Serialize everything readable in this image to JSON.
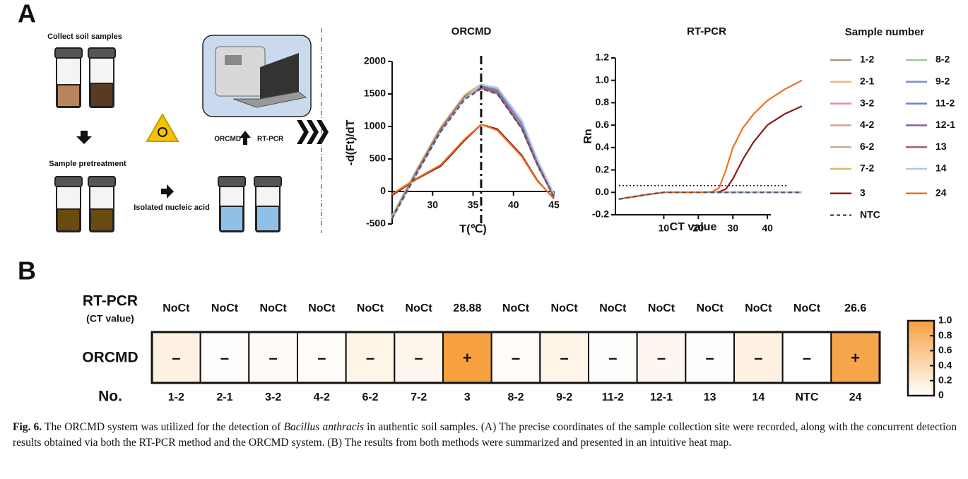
{
  "panel_labels": [
    "A",
    "B"
  ],
  "schematic": {
    "collect": "Collect soil samples",
    "pretreatment": "Sample pretreatment",
    "isolated": "Isolated nucleic acid",
    "orcmd": "ORCMD",
    "rtpcr": "RT-PCR"
  },
  "chart_data": [
    {
      "type": "line",
      "title": "ORCMD",
      "x_label": "T(℃)",
      "y_label": "-d(Ft)/dT",
      "x": [
        25,
        28,
        31,
        34,
        36,
        38,
        41,
        43,
        45
      ],
      "xlim": [
        25,
        45
      ],
      "xticks": [
        30,
        35,
        40,
        45
      ],
      "ylim": [
        -500,
        2000
      ],
      "yticks": [
        -500,
        0,
        500,
        1000,
        1500,
        2000
      ],
      "vline": 36,
      "legend_title": "Sample number",
      "series": [
        {
          "name": "1-2",
          "color": "#a89a6e",
          "values": [
            -380,
            320,
            980,
            1480,
            1640,
            1560,
            1000,
            420,
            -60
          ]
        },
        {
          "name": "2-1",
          "color": "#f9b27a",
          "values": [
            -420,
            280,
            940,
            1440,
            1590,
            1510,
            980,
            400,
            -80
          ]
        },
        {
          "name": "3-2",
          "color": "#f08aa0",
          "values": [
            -410,
            290,
            950,
            1450,
            1580,
            1500,
            970,
            390,
            -90
          ]
        },
        {
          "name": "4-2",
          "color": "#d9a0a0",
          "values": [
            -400,
            300,
            960,
            1460,
            1600,
            1520,
            990,
            410,
            -70
          ]
        },
        {
          "name": "6-2",
          "color": "#d4a890",
          "values": [
            -390,
            310,
            970,
            1470,
            1620,
            1540,
            1000,
            420,
            -60
          ]
        },
        {
          "name": "7-2",
          "color": "#c8c070",
          "values": [
            -370,
            330,
            990,
            1490,
            1650,
            1570,
            1010,
            430,
            -50
          ]
        },
        {
          "name": "3",
          "color": "#8b1a1a",
          "values": [
            -60,
            190,
            390,
            790,
            1030,
            960,
            560,
            160,
            -110
          ]
        },
        {
          "name": "NTC",
          "color": "#555555",
          "dash": true,
          "values": [
            -420,
            270,
            920,
            1420,
            1580,
            1500,
            970,
            400,
            -90
          ]
        },
        {
          "name": "8-2",
          "color": "#a0c8a0",
          "values": [
            -400,
            300,
            960,
            1460,
            1610,
            1530,
            990,
            410,
            -70
          ]
        },
        {
          "name": "9-2",
          "color": "#7f8fc0",
          "values": [
            -410,
            290,
            950,
            1450,
            1600,
            1520,
            990,
            410,
            -80
          ]
        },
        {
          "name": "11-2",
          "color": "#7080c8",
          "values": [
            -400,
            280,
            940,
            1450,
            1620,
            1560,
            1050,
            450,
            -60
          ]
        },
        {
          "name": "12-1",
          "color": "#9060a0",
          "values": [
            -410,
            290,
            950,
            1450,
            1600,
            1520,
            980,
            400,
            -80
          ]
        },
        {
          "name": "13",
          "color": "#a06080",
          "values": [
            -400,
            300,
            960,
            1460,
            1610,
            1530,
            990,
            410,
            -70
          ]
        },
        {
          "name": "14",
          "color": "#b0c8e8",
          "values": [
            -420,
            260,
            920,
            1430,
            1640,
            1600,
            1100,
            480,
            -40
          ]
        },
        {
          "name": "24",
          "color": "#f07020",
          "values": [
            -40,
            200,
            410,
            810,
            1030,
            940,
            540,
            150,
            -100
          ]
        }
      ]
    },
    {
      "type": "line",
      "title": "RT-PCR",
      "x_label": "CT value",
      "y_label": "Rn",
      "x": [
        -3,
        5,
        10,
        15,
        20,
        24,
        26,
        28,
        30,
        33,
        36,
        40,
        45,
        50
      ],
      "xlim": [
        -4,
        41
      ],
      "xticks": [
        10,
        20,
        30,
        40
      ],
      "ylim": [
        -0.2,
        1.2
      ],
      "yticks": [
        -0.2,
        {
          "value": 0,
          "label": "0.0"
        },
        0.2,
        0.4,
        0.6,
        0.8,
        {
          "value": 1,
          "label": "1.0"
        },
        1.2
      ],
      "threshold": 0.06,
      "series": [
        {
          "name": "1-2",
          "color": "#a89a6e",
          "values": [
            -0.06,
            -0.02,
            0,
            0,
            0,
            0,
            0,
            0,
            0,
            0,
            0,
            0,
            0,
            0
          ]
        },
        {
          "name": "2-1",
          "color": "#f9b27a",
          "values": [
            -0.06,
            -0.02,
            0,
            0,
            0,
            0,
            0,
            0,
            0,
            0,
            0,
            0,
            0,
            0
          ]
        },
        {
          "name": "3-2",
          "color": "#f08aa0",
          "values": [
            -0.06,
            -0.02,
            0,
            0,
            0,
            0,
            0,
            0,
            0,
            0,
            0,
            0,
            0,
            0
          ]
        },
        {
          "name": "4-2",
          "color": "#d9a0a0",
          "values": [
            -0.06,
            -0.02,
            0,
            0,
            0,
            0,
            0,
            0,
            0,
            0,
            0,
            0,
            0,
            0
          ]
        },
        {
          "name": "6-2",
          "color": "#d4a890",
          "values": [
            -0.06,
            -0.02,
            0,
            0,
            0,
            0,
            0,
            0,
            0,
            0,
            0,
            0,
            0,
            0
          ]
        },
        {
          "name": "7-2",
          "color": "#c8c070",
          "values": [
            -0.06,
            -0.02,
            0,
            0,
            0,
            0,
            0,
            0,
            0,
            0,
            0,
            0,
            0,
            0
          ]
        },
        {
          "name": "3",
          "color": "#8b1a1a",
          "values": [
            -0.06,
            -0.02,
            0,
            0,
            0,
            0,
            0.005,
            0.03,
            0.12,
            0.3,
            0.45,
            0.6,
            0.7,
            0.77
          ]
        },
        {
          "name": "NTC",
          "color": "#555555",
          "dash": true,
          "values": [
            -0.06,
            -0.02,
            0,
            0,
            0,
            0,
            0,
            0,
            0,
            0,
            0,
            0,
            0,
            0
          ]
        },
        {
          "name": "8-2",
          "color": "#a0c8a0",
          "values": [
            -0.06,
            -0.02,
            0,
            0,
            0,
            0,
            0,
            0,
            0,
            0,
            0,
            0,
            0,
            0
          ]
        },
        {
          "name": "9-2",
          "color": "#7f8fc0",
          "values": [
            -0.06,
            -0.02,
            0,
            0,
            0,
            0,
            0,
            0,
            0,
            0,
            0,
            0,
            0,
            0
          ]
        },
        {
          "name": "11-2",
          "color": "#7080c8",
          "values": [
            -0.06,
            -0.02,
            0,
            0,
            0,
            0,
            0,
            0,
            0,
            0,
            0,
            0,
            0,
            0
          ]
        },
        {
          "name": "12-1",
          "color": "#9060a0",
          "values": [
            -0.06,
            -0.02,
            0,
            0,
            0,
            0,
            0,
            0,
            0,
            0,
            0,
            0,
            0,
            0
          ]
        },
        {
          "name": "13",
          "color": "#a06080",
          "values": [
            -0.06,
            -0.02,
            0,
            0,
            0,
            0,
            0,
            0,
            0,
            0,
            0,
            0,
            0,
            0
          ]
        },
        {
          "name": "14",
          "color": "#b0c8e8",
          "values": [
            -0.06,
            -0.02,
            0,
            0,
            0,
            0,
            0,
            0,
            0,
            0,
            0,
            0,
            0,
            0
          ]
        },
        {
          "name": "24",
          "color": "#f07020",
          "values": [
            -0.06,
            -0.02,
            0,
            0,
            0,
            0.005,
            0.04,
            0.2,
            0.4,
            0.58,
            0.7,
            0.82,
            0.92,
            1.0
          ]
        }
      ]
    }
  ],
  "heatmap": {
    "row_labels": {
      "rtpcr": "RT-PCR",
      "ct": "(CT value)",
      "orcmd": "ORCMD",
      "no": "No."
    },
    "samples": [
      "1-2",
      "2-1",
      "3-2",
      "4-2",
      "6-2",
      "7-2",
      "3",
      "8-2",
      "9-2",
      "11-2",
      "12-1",
      "13",
      "14",
      "NTC",
      "24"
    ],
    "ct": [
      "NoCt",
      "NoCt",
      "NoCt",
      "NoCt",
      "NoCt",
      "NoCt",
      "28.88",
      "NoCt",
      "NoCt",
      "NoCt",
      "NoCt",
      "NoCt",
      "NoCt",
      "NoCt",
      "26.6"
    ],
    "orcmd": [
      "–",
      "–",
      "–",
      "–",
      "–",
      "–",
      "+",
      "–",
      "–",
      "–",
      "–",
      "–",
      "–",
      "–",
      "+"
    ],
    "values": [
      0.15,
      0.02,
      0.05,
      0.03,
      0.12,
      0.1,
      1.0,
      0.03,
      0.12,
      0.02,
      0.08,
      0.02,
      0.15,
      0,
      0.95
    ],
    "color": "#f7a040",
    "colorbar_ticks": [
      0,
      0.2,
      0.4,
      0.6,
      0.8,
      {
        "value": 1,
        "label": "1.0"
      }
    ]
  },
  "caption": {
    "label": "Fig. 6.",
    "text1": " The ORCMD system was utilized for the detection of ",
    "italic": "Bacillus anthracis",
    "text2": " in authentic soil samples. (A) The precise coordinates of the sample collection site were recorded, along with the concurrent detection results obtained via both the RT-PCR method and the ORCMD system. (B) The results from both methods were summarized and presented in an intuitive heat map."
  }
}
